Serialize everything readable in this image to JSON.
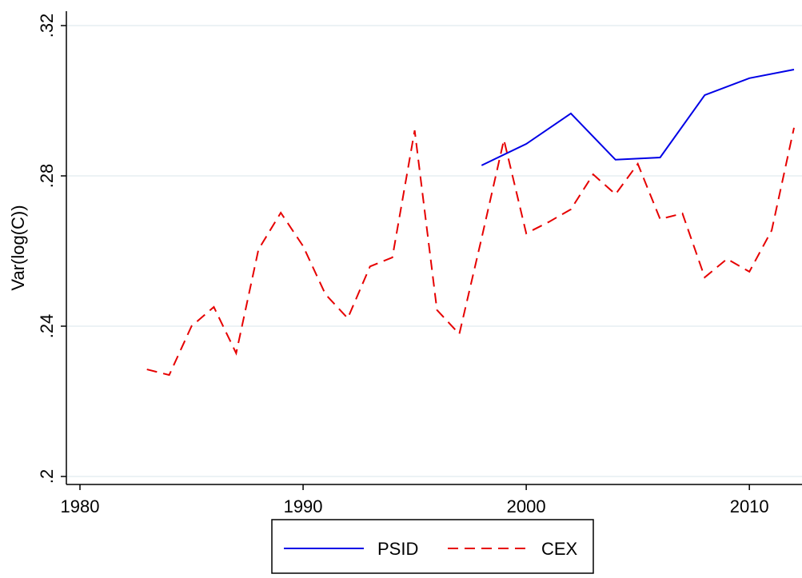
{
  "chart_data": {
    "type": "line",
    "y_label": "Var(log(C))",
    "xlim": [
      1980,
      2012
    ],
    "xticks": [
      1980,
      1990,
      2000,
      2010
    ],
    "ylim": [
      0.2,
      0.32
    ],
    "yticks": [
      {
        "value": 0.2,
        "label": ".2"
      },
      {
        "value": 0.24,
        "label": ".24"
      },
      {
        "value": 0.28,
        "label": ".28"
      },
      {
        "value": 0.32,
        "label": ".32"
      }
    ],
    "grid": true,
    "legend": "bottom",
    "series": [
      {
        "name": "PSID",
        "color": "#0000e6",
        "line_style": "solid",
        "x": [
          1998,
          2000,
          2002,
          2004,
          2006,
          2008,
          2010,
          2012
        ],
        "values": [
          0.2828,
          0.2885,
          0.2966,
          0.2843,
          0.2849,
          0.3015,
          0.306,
          0.3083
        ]
      },
      {
        "name": "CEX",
        "color": "#e60000",
        "line_style": "dashed",
        "x": [
          1983,
          1984,
          1985,
          1986,
          1987,
          1988,
          1989,
          1990,
          1991,
          1992,
          1993,
          1994,
          1995,
          1996,
          1997,
          1998,
          1999,
          2000,
          2001,
          2002,
          2003,
          2004,
          2005,
          2006,
          2007,
          2008,
          2009,
          2010,
          2011,
          2012
        ],
        "values": [
          0.2285,
          0.227,
          0.24,
          0.2451,
          0.2328,
          0.2604,
          0.2702,
          0.2613,
          0.2485,
          0.2421,
          0.2559,
          0.2583,
          0.2921,
          0.2443,
          0.2379,
          0.2634,
          0.2896,
          0.2647,
          0.2677,
          0.2711,
          0.2804,
          0.2751,
          0.2832,
          0.2685,
          0.27,
          0.253,
          0.2579,
          0.2545,
          0.2655,
          0.2928
        ]
      }
    ]
  }
}
